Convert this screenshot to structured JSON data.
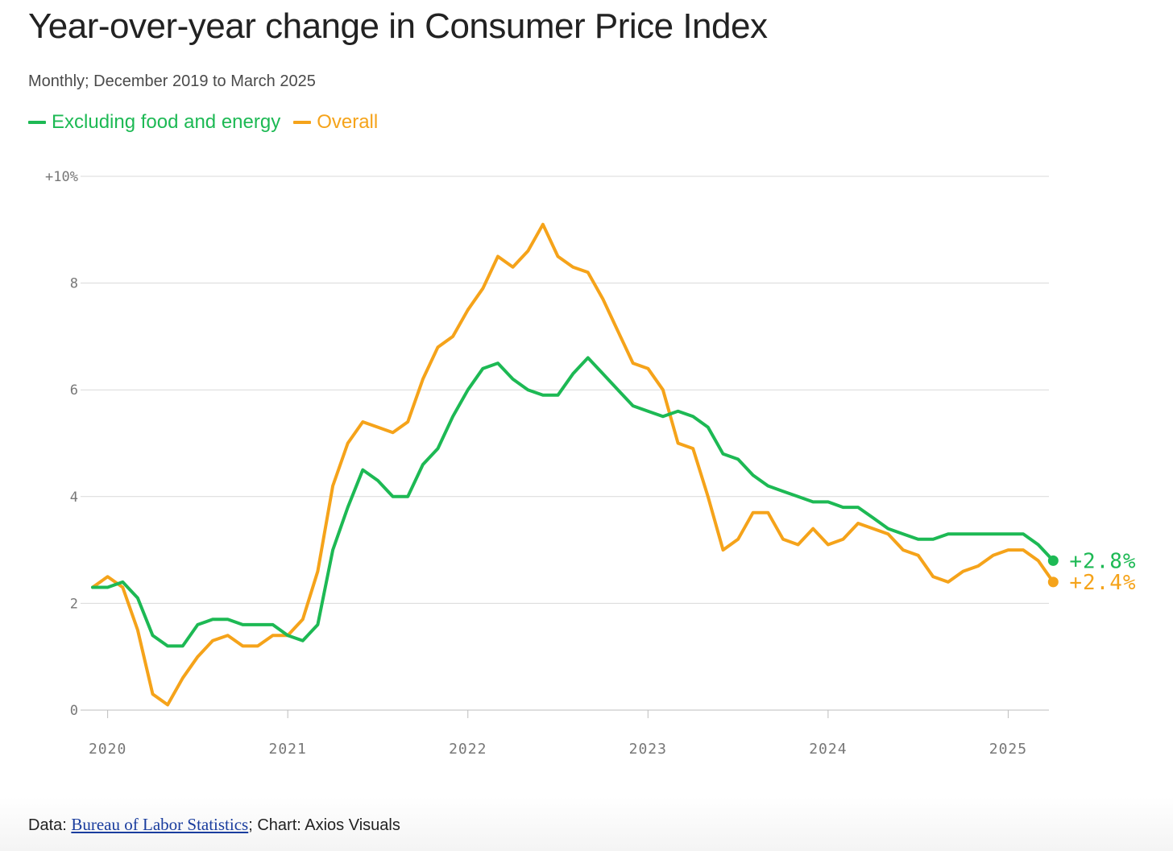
{
  "title": "Year-over-year change in Consumer Price Index",
  "subtitle": "Monthly; December 2019 to March 2025",
  "colors": {
    "core": "#1db954",
    "overall": "#f5a31a",
    "grid": "#d9d9d9",
    "tick_text": "#777777"
  },
  "source": {
    "prefix": "Data: ",
    "link": "Bureau of Labor Statistics",
    "suffix": "; Chart: Axios Visuals"
  },
  "chart_data": {
    "type": "line",
    "x_start": "2019-12",
    "x_end": "2025-03",
    "ylim": [
      0,
      10
    ],
    "y_ticks": [
      {
        "value": 10,
        "label": "+10%"
      },
      {
        "value": 8,
        "label": "8"
      },
      {
        "value": 6,
        "label": "6"
      },
      {
        "value": 4,
        "label": "4"
      },
      {
        "value": 2,
        "label": "2"
      },
      {
        "value": 0,
        "label": "0"
      }
    ],
    "x_ticks": [
      {
        "date": "2020-01",
        "label": "2020"
      },
      {
        "date": "2021-01",
        "label": "2021"
      },
      {
        "date": "2022-01",
        "label": "2022"
      },
      {
        "date": "2023-01",
        "label": "2023"
      },
      {
        "date": "2024-01",
        "label": "2024"
      },
      {
        "date": "2025-01",
        "label": "2025"
      }
    ],
    "grid": true,
    "legend_position": "top-left",
    "series": [
      {
        "name": "Excluding food and energy",
        "color": "#1db954",
        "end_label": "+2.8%",
        "values": [
          2.3,
          2.3,
          2.4,
          2.1,
          1.4,
          1.2,
          1.2,
          1.6,
          1.7,
          1.7,
          1.6,
          1.6,
          1.6,
          1.4,
          1.3,
          1.6,
          3.0,
          3.8,
          4.5,
          4.3,
          4.0,
          4.0,
          4.6,
          4.9,
          5.5,
          6.0,
          6.4,
          6.5,
          6.2,
          6.0,
          5.9,
          5.9,
          6.3,
          6.6,
          6.3,
          6.0,
          5.7,
          5.6,
          5.5,
          5.6,
          5.5,
          5.3,
          4.8,
          4.7,
          4.4,
          4.2,
          4.1,
          4.0,
          3.9,
          3.9,
          3.8,
          3.8,
          3.6,
          3.4,
          3.3,
          3.2,
          3.2,
          3.3,
          3.3,
          3.3,
          3.3,
          3.3,
          3.3,
          3.1,
          2.8
        ]
      },
      {
        "name": "Overall",
        "color": "#f5a31a",
        "end_label": "+2.4%",
        "values": [
          2.3,
          2.5,
          2.3,
          1.5,
          0.3,
          0.1,
          0.6,
          1.0,
          1.3,
          1.4,
          1.2,
          1.2,
          1.4,
          1.4,
          1.7,
          2.6,
          4.2,
          5.0,
          5.4,
          5.3,
          5.2,
          5.4,
          6.2,
          6.8,
          7.0,
          7.5,
          7.9,
          8.5,
          8.3,
          8.6,
          9.1,
          8.5,
          8.3,
          8.2,
          7.7,
          7.1,
          6.5,
          6.4,
          6.0,
          5.0,
          4.9,
          4.0,
          3.0,
          3.2,
          3.7,
          3.7,
          3.2,
          3.1,
          3.4,
          3.1,
          3.2,
          3.5,
          3.4,
          3.3,
          3.0,
          2.9,
          2.5,
          2.4,
          2.6,
          2.7,
          2.9,
          3.0,
          3.0,
          2.8,
          2.4
        ]
      }
    ]
  }
}
